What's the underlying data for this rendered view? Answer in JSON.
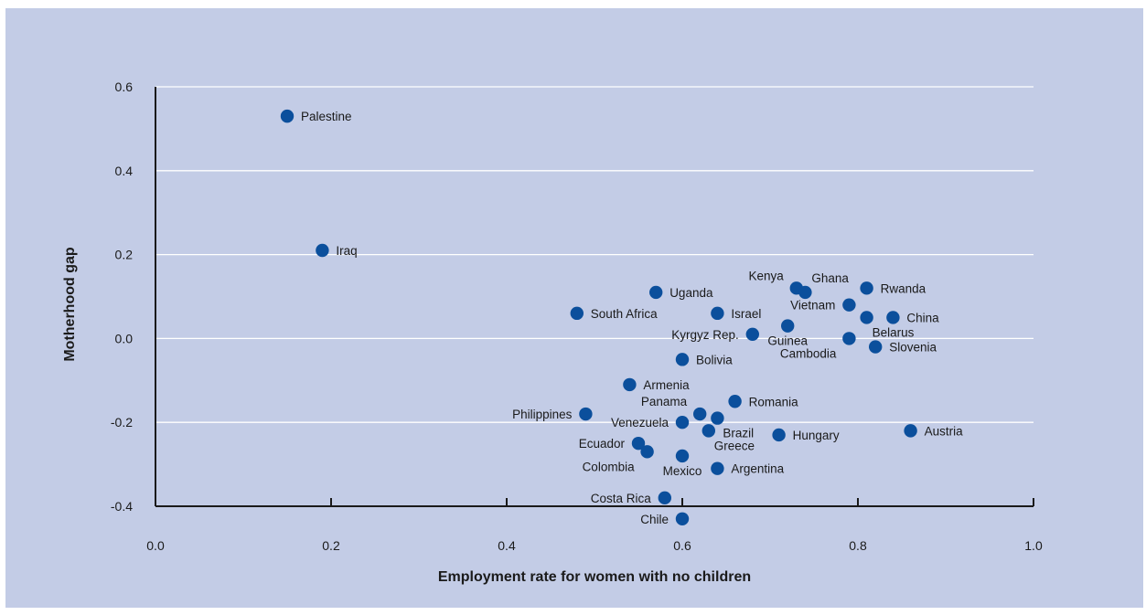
{
  "colors": {
    "background": "#c3cce6",
    "point": "#0b4f9c",
    "grid": "#ffffff",
    "axis": "#1a1a1a"
  },
  "chart_data": {
    "type": "scatter",
    "xlabel": "Employment rate for women with no children",
    "ylabel": "Motherhood gap",
    "xlim": [
      0.0,
      1.0
    ],
    "ylim": [
      -0.4,
      0.6
    ],
    "xticks": [
      "0.0",
      "0.2",
      "0.4",
      "0.6",
      "0.8",
      "1.0"
    ],
    "yticks": [
      "-0.4",
      "-0.2",
      "0.0",
      "0.2",
      "0.4",
      "0.6"
    ],
    "grid": "horizontal",
    "points": [
      {
        "label": "Palestine",
        "x": 0.15,
        "y": 0.53,
        "pos": "right"
      },
      {
        "label": "Iraq",
        "x": 0.19,
        "y": 0.21,
        "pos": "right"
      },
      {
        "label": "South Africa",
        "x": 0.48,
        "y": 0.06,
        "pos": "right"
      },
      {
        "label": "Uganda",
        "x": 0.57,
        "y": 0.11,
        "pos": "right"
      },
      {
        "label": "Israel",
        "x": 0.64,
        "y": 0.06,
        "pos": "right"
      },
      {
        "label": "Kyrgyz Rep.",
        "x": 0.68,
        "y": 0.01,
        "pos": "left"
      },
      {
        "label": "Kenya",
        "x": 0.73,
        "y": 0.12,
        "pos": "above-left"
      },
      {
        "label": "Ghana",
        "x": 0.74,
        "y": 0.11,
        "pos": "above-right"
      },
      {
        "label": "Guinea",
        "x": 0.72,
        "y": 0.03,
        "pos": "below"
      },
      {
        "label": "Vietnam",
        "x": 0.79,
        "y": 0.08,
        "pos": "left"
      },
      {
        "label": "Rwanda",
        "x": 0.81,
        "y": 0.12,
        "pos": "right"
      },
      {
        "label": "Belarus",
        "x": 0.81,
        "y": 0.05,
        "pos": "below-right"
      },
      {
        "label": "China",
        "x": 0.84,
        "y": 0.05,
        "pos": "right"
      },
      {
        "label": "Cambodia",
        "x": 0.79,
        "y": 0.0,
        "pos": "below-left"
      },
      {
        "label": "Slovenia",
        "x": 0.82,
        "y": -0.02,
        "pos": "right"
      },
      {
        "label": "Bolivia",
        "x": 0.6,
        "y": -0.05,
        "pos": "right"
      },
      {
        "label": "Armenia",
        "x": 0.54,
        "y": -0.11,
        "pos": "right"
      },
      {
        "label": "Philippines",
        "x": 0.49,
        "y": -0.18,
        "pos": "left"
      },
      {
        "label": "Panama",
        "x": 0.62,
        "y": -0.18,
        "pos": "above-left"
      },
      {
        "label": "Venezuela",
        "x": 0.6,
        "y": -0.2,
        "pos": "left"
      },
      {
        "label": "Brazil",
        "x": 0.64,
        "y": -0.19,
        "pos": "below-right"
      },
      {
        "label": "Romania",
        "x": 0.66,
        "y": -0.15,
        "pos": "right"
      },
      {
        "label": "Greece",
        "x": 0.63,
        "y": -0.22,
        "pos": "below-right"
      },
      {
        "label": "Hungary",
        "x": 0.71,
        "y": -0.23,
        "pos": "right"
      },
      {
        "label": "Austria",
        "x": 0.86,
        "y": -0.22,
        "pos": "right"
      },
      {
        "label": "Ecuador",
        "x": 0.55,
        "y": -0.25,
        "pos": "left"
      },
      {
        "label": "Colombia",
        "x": 0.56,
        "y": -0.27,
        "pos": "below-left"
      },
      {
        "label": "Mexico",
        "x": 0.6,
        "y": -0.28,
        "pos": "below"
      },
      {
        "label": "Argentina",
        "x": 0.64,
        "y": -0.31,
        "pos": "right"
      },
      {
        "label": "Costa Rica",
        "x": 0.58,
        "y": -0.38,
        "pos": "left"
      },
      {
        "label": "Chile",
        "x": 0.6,
        "y": -0.43,
        "pos": "left"
      }
    ]
  }
}
